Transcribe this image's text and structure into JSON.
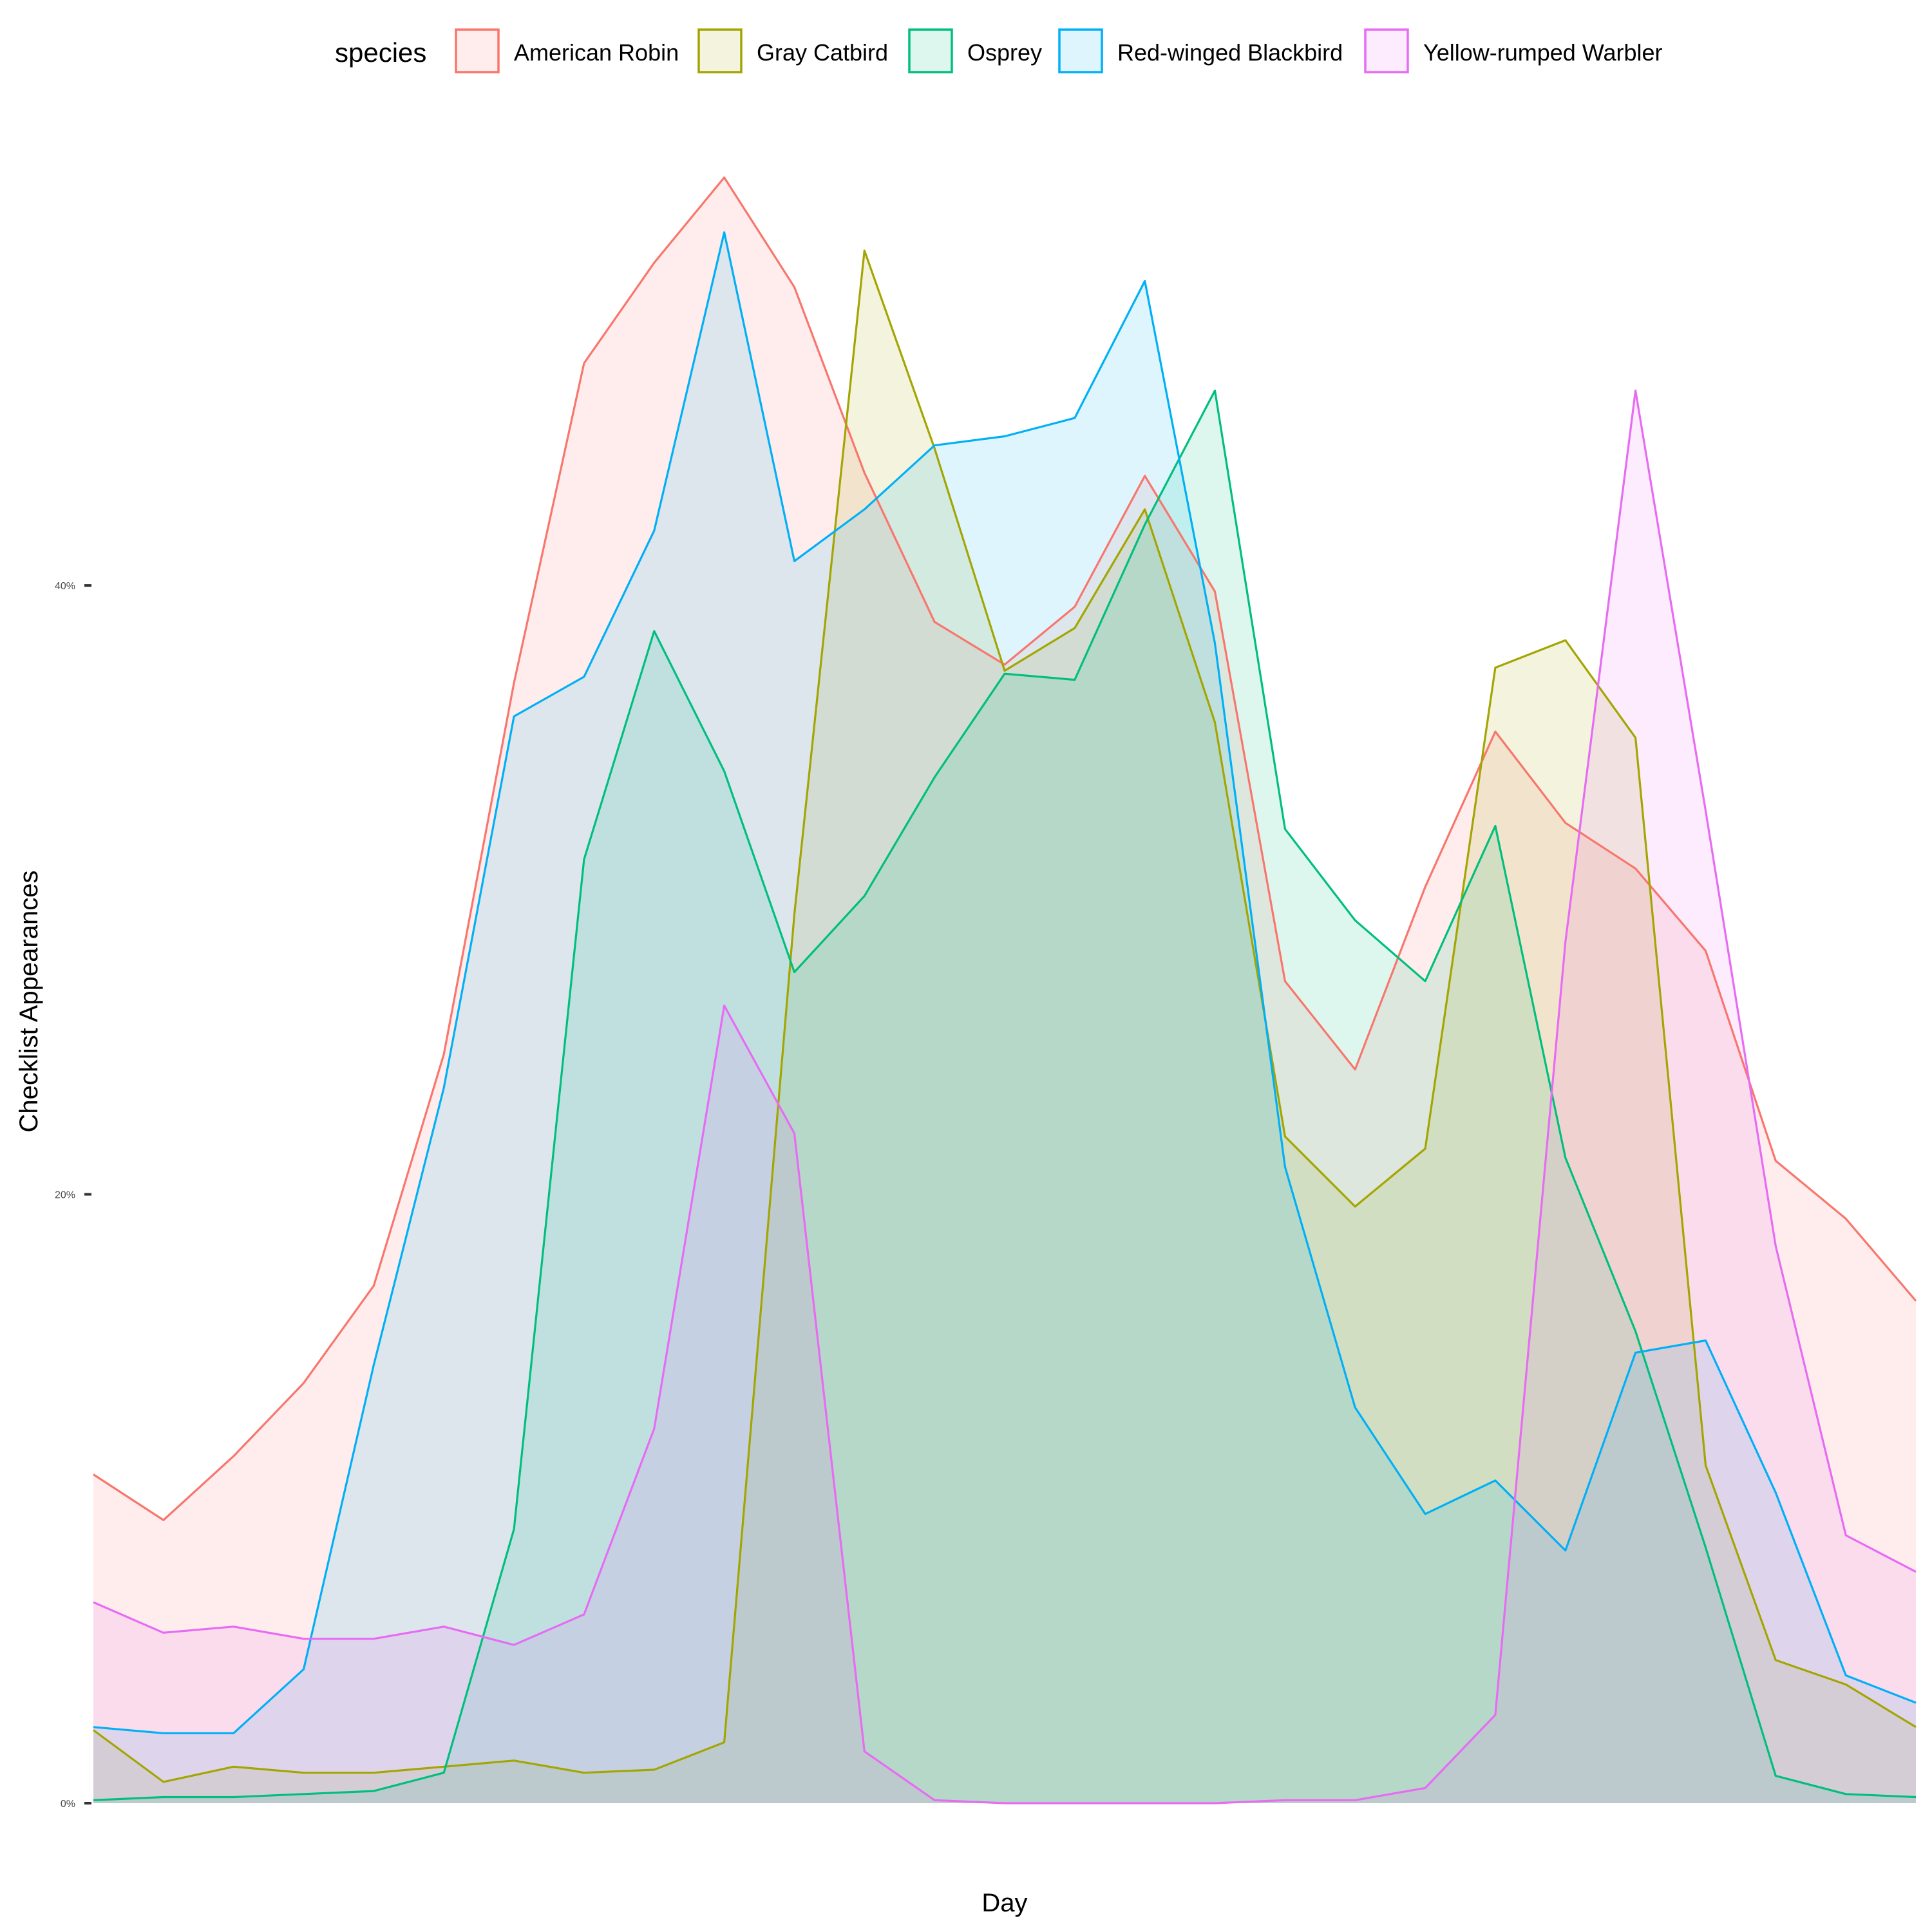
{
  "chart_data": {
    "type": "area",
    "title": "",
    "xlabel": "Day",
    "ylabel": "Checklist Appearances",
    "ylim": [
      0,
      0.55
    ],
    "yticks": [
      0,
      0.2,
      0.4
    ],
    "ytick_labels": [
      "0%",
      "20%",
      "40%"
    ],
    "legend": {
      "title": "species",
      "position": "top"
    },
    "x": [
      1,
      15,
      29,
      43,
      57,
      71,
      85,
      99,
      113,
      127,
      141,
      155,
      169,
      183,
      197,
      211,
      225,
      239,
      253,
      267,
      281,
      295,
      309,
      323,
      337,
      351,
      365
    ],
    "series": [
      {
        "name": "American Robin",
        "color": "#F8766D",
        "values": [
          0.108,
          0.093,
          0.114,
          0.138,
          0.17,
          0.246,
          0.368,
          0.473,
          0.506,
          0.534,
          0.498,
          0.437,
          0.388,
          0.374,
          0.393,
          0.436,
          0.398,
          0.27,
          0.241,
          0.301,
          0.352,
          0.322,
          0.307,
          0.28,
          0.211,
          0.192,
          0.165
        ]
      },
      {
        "name": "Gray Catbird",
        "color": "#A3A500",
        "values": [
          0.024,
          0.007,
          0.012,
          0.01,
          0.01,
          0.012,
          0.014,
          0.01,
          0.011,
          0.02,
          0.292,
          0.51,
          0.445,
          0.372,
          0.386,
          0.425,
          0.355,
          0.219,
          0.196,
          0.215,
          0.373,
          0.382,
          0.35,
          0.111,
          0.047,
          0.039,
          0.025
        ]
      },
      {
        "name": "Osprey",
        "color": "#00BF7D",
        "values": [
          0.001,
          0.002,
          0.002,
          0.003,
          0.004,
          0.01,
          0.09,
          0.31,
          0.385,
          0.339,
          0.273,
          0.298,
          0.337,
          0.371,
          0.369,
          0.42,
          0.464,
          0.32,
          0.29,
          0.27,
          0.321,
          0.212,
          0.155,
          0.084,
          0.009,
          0.003,
          0.002
        ]
      },
      {
        "name": "Red-winged Blackbird",
        "color": "#00B0F6",
        "values": [
          0.025,
          0.023,
          0.023,
          0.044,
          0.144,
          0.235,
          0.357,
          0.37,
          0.418,
          0.516,
          0.408,
          0.425,
          0.446,
          0.449,
          0.455,
          0.5,
          0.381,
          0.209,
          0.13,
          0.095,
          0.106,
          0.083,
          0.148,
          0.152,
          0.102,
          0.042,
          0.033
        ]
      },
      {
        "name": "Yellow-rumped Warbler",
        "color": "#E76BF3",
        "values": [
          0.066,
          0.056,
          0.058,
          0.054,
          0.054,
          0.058,
          0.052,
          0.062,
          0.123,
          0.262,
          0.22,
          0.017,
          0.001,
          0.0,
          0.0,
          0.0,
          0.0,
          0.001,
          0.001,
          0.005,
          0.029,
          0.283,
          0.464,
          0.326,
          0.183,
          0.088,
          0.076
        ]
      }
    ]
  }
}
